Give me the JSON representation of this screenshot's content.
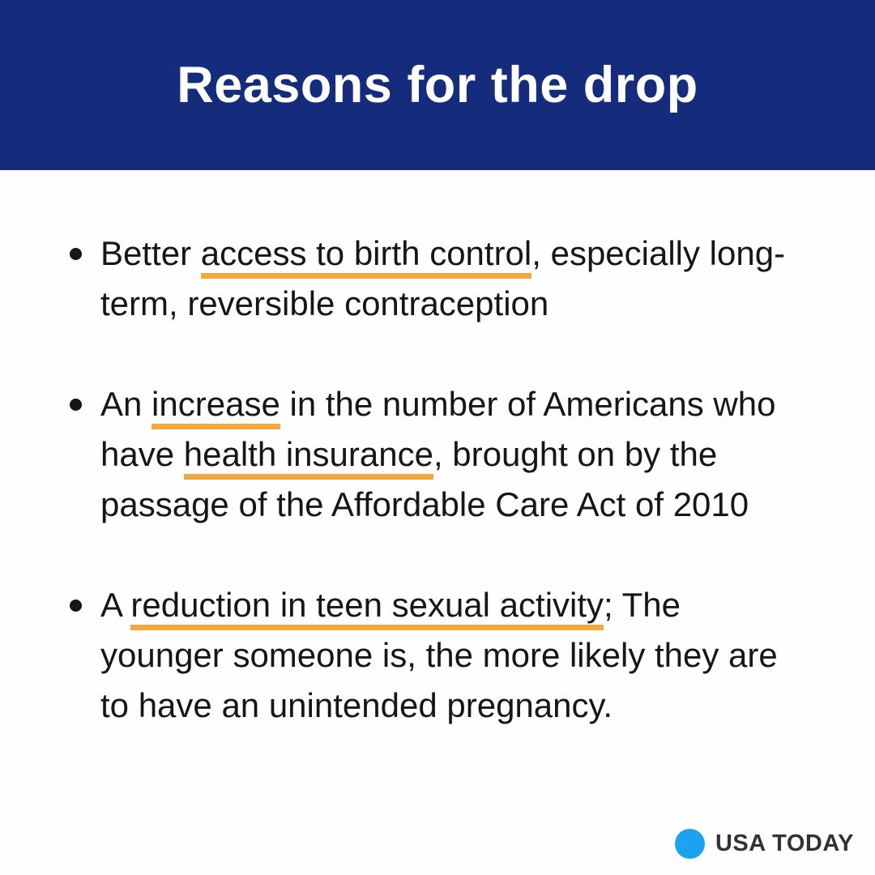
{
  "header": {
    "title": "Reasons for the drop"
  },
  "bullets": [
    {
      "segments": [
        {
          "text": "Better ",
          "underline": false
        },
        {
          "text": "access to birth control",
          "underline": true
        },
        {
          "text": ", especially long-term, reversible contraception",
          "underline": false
        }
      ]
    },
    {
      "segments": [
        {
          "text": "An ",
          "underline": false
        },
        {
          "text": "increase",
          "underline": true
        },
        {
          "text": " in the number of Americans who have ",
          "underline": false
        },
        {
          "text": "health insurance",
          "underline": true
        },
        {
          "text": ", brought on by the passage of the Affordable Care Act of 2010",
          "underline": false
        }
      ]
    },
    {
      "segments": [
        {
          "text": "A ",
          "underline": false
        },
        {
          "text": "reduction in teen sexual activity",
          "underline": true
        },
        {
          "text": "; The younger someone is, the more likely they are to have an unintended pregnancy.",
          "underline": false
        }
      ]
    }
  ],
  "footer": {
    "brand": "USA TODAY"
  },
  "colors": {
    "navy": "#152b7c",
    "gold": "#f2a93c",
    "ink": "#161616",
    "bg": "#fefefe",
    "logo-blue": "#1ba2f0",
    "logo-text": "#323232"
  }
}
